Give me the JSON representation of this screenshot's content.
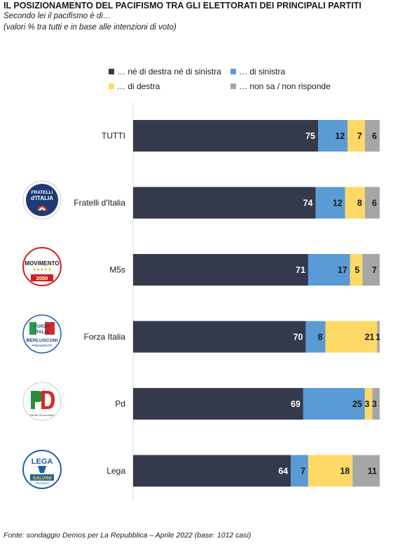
{
  "title": "IL POSIZIONAMENTO DEL PACIFISMO TRA GLI ELETTORATI DEI PRINCIPALI PARTITI",
  "subtitle": "Secondo lei il pacifismo è di…",
  "note": "(valori % tra tutti e in base alle intenzioni di voto)",
  "source": "Fonte: sondaggio Demos per La Repubblica – Aprile 2022 (base: 1012 casi)",
  "colors": {
    "neither": "#343a4b",
    "left": "#5b9bd5",
    "right": "#ffd966",
    "unknown": "#a6a6a6"
  },
  "logos": {
    "fdi_line1": "FRATELLI",
    "fdi_line2": "d'ITALIA",
    "m5s_line1": "MOVIMENTO",
    "m5s_line2": "2050",
    "fi_line1": "FORZA",
    "fi_line2": "ITALIA",
    "fi_line3": "BERLUSCONI",
    "fi_line4": "PRESIDENTE",
    "pd_line1": "PD",
    "pd_line2": "Partito Democratico",
    "lega_line1": "LEGA",
    "lega_line2": "SALVINI",
    "lega_line3": "PREMIER"
  },
  "chart_data": {
    "type": "bar",
    "orientation": "horizontal",
    "stacked": true,
    "xlim": [
      0,
      100
    ],
    "categories": [
      "TUTTI",
      "Fratelli d'Italia",
      "M5s",
      "Forza Italia",
      "Pd",
      "Lega"
    ],
    "legend_position": "top",
    "series": [
      {
        "name": "… né di destra né di sinistra",
        "values": [
          75,
          74,
          71,
          70,
          69,
          64
        ]
      },
      {
        "name": "… di sinistra",
        "values": [
          12,
          12,
          17,
          8,
          25,
          7
        ]
      },
      {
        "name": "… di destra",
        "values": [
          7,
          8,
          5,
          21,
          3,
          18
        ]
      },
      {
        "name": "… non sa / non risponde",
        "values": [
          6,
          6,
          7,
          1,
          3,
          11
        ]
      }
    ]
  }
}
